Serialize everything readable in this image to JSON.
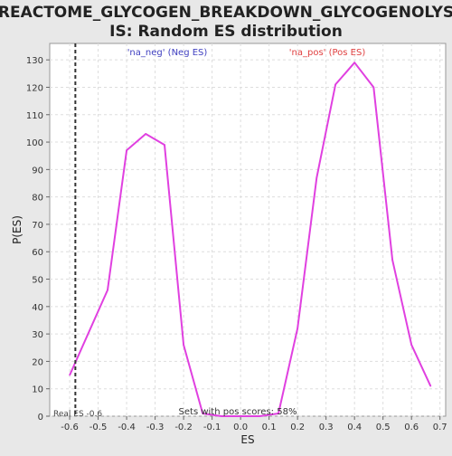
{
  "chart_data": {
    "type": "line",
    "title": "REACTOME_GLYCOGEN_BREAKDOWN_GLYCOGENOLYSIS: Random ES distribution",
    "title_lines": [
      "REACTOME_GLYCOGEN_BREAKDOWN_GLYCOGENOLYS",
      "IS: Random ES distribution"
    ],
    "xlabel": "ES",
    "ylabel": "P(ES)",
    "xlim": [
      -0.67,
      0.72
    ],
    "ylim": [
      0,
      136
    ],
    "x_ticks": [
      -0.6,
      -0.5,
      -0.4,
      -0.3,
      -0.2,
      -0.1,
      0.0,
      0.1,
      0.2,
      0.3,
      0.4,
      0.5,
      0.6,
      0.7
    ],
    "x_tick_labels": [
      "-0.6",
      "-0.5",
      "-0.4",
      "-0.3",
      "-0.2",
      "-0.1",
      "0.0",
      "0.1",
      "0.2",
      "0.3",
      "0.4",
      "0.5",
      "0.6",
      "0.7"
    ],
    "y_ticks": [
      0,
      10,
      20,
      30,
      40,
      50,
      60,
      70,
      80,
      90,
      100,
      110,
      120,
      130
    ],
    "grid": true,
    "series": [
      {
        "color": "#e040e0",
        "x": [
          -0.6,
          -0.467,
          -0.4,
          -0.333,
          -0.267,
          -0.2,
          -0.133,
          -0.067,
          0.0,
          0.067,
          0.133,
          0.2,
          0.267,
          0.333,
          0.4,
          0.467,
          0.533,
          0.6,
          0.667
        ],
        "y": [
          15,
          46,
          97,
          103,
          99,
          26,
          1,
          0,
          0,
          0,
          1,
          32,
          87,
          121,
          129,
          120,
          57,
          26,
          11
        ]
      }
    ],
    "real_es": -0.58,
    "annotations": {
      "neg_label": "'na_neg' (Neg ES)",
      "pos_label": "'na_pos' (Pos ES)",
      "real_es_text": "Real ES -0.6",
      "sets_text": "Sets with pos scores: 58%"
    },
    "colors": {
      "neg_label": "#4040c0",
      "pos_label": "#e04040",
      "line": "#e040e0",
      "real_es_line": "#333333",
      "plot_bg": "#ffffff",
      "page_bg": "#e8e8e8"
    }
  }
}
